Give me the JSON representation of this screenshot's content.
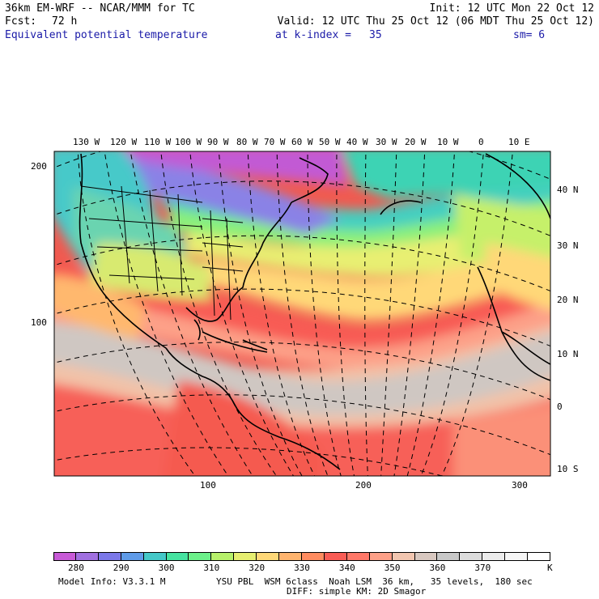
{
  "header": {
    "model_title": "36km EM-WRF -- NCAR/MMM for TC",
    "init_time": "Init: 12 UTC Mon 22 Oct 12",
    "forecast_label": "Fcst:",
    "forecast_hours": "72 h",
    "valid_time": "Valid: 12 UTC Thu 25 Oct 12 (06 MDT Thu 25 Oct 12)",
    "field_name": "Equivalent potential temperature",
    "level_text": "at k-index =",
    "level_value": "35",
    "smoothing": "sm= 6"
  },
  "map": {
    "longitude_labels_top": [
      "130 W",
      "120 W",
      "110 W",
      "100 W",
      "90 W",
      "80 W",
      "70 W",
      "60 W",
      "50 W",
      "40 W",
      "30 W",
      "20 W",
      "10 W",
      "0",
      "10 E"
    ],
    "latitude_labels_right": [
      "40 N",
      "30 N",
      "20 N",
      "10 N",
      "0",
      "10 S"
    ],
    "grid_x_labels": [
      "100",
      "200",
      "300"
    ],
    "grid_y_labels": [
      "200",
      "100"
    ]
  },
  "colorbar": {
    "unit": "K",
    "tick_labels": [
      "280",
      "290",
      "300",
      "310",
      "320",
      "330",
      "340",
      "350",
      "360",
      "370"
    ],
    "colors": [
      "#c75ad6",
      "#a070e0",
      "#7b78e8",
      "#5f9be8",
      "#44c8c8",
      "#46e3a0",
      "#6cf08a",
      "#b6f06a",
      "#e6ee70",
      "#ffd878",
      "#ffb46e",
      "#ff8c60",
      "#f95c55",
      "#ff7868",
      "#fda088",
      "#f2c6b0",
      "#d8c8c0",
      "#c8c8c8",
      "#dcdcdc",
      "#ececec",
      "#f6f6f6",
      "#ffffff"
    ]
  },
  "footer": {
    "model_info": "Model Info: V3.3.1 M",
    "physics_line1": "YSU PBL  WSM 6class  Noah LSM  36 km,   35 levels,  180 sec",
    "physics_line2": "DIFF: simple KM: 2D Smagor"
  }
}
